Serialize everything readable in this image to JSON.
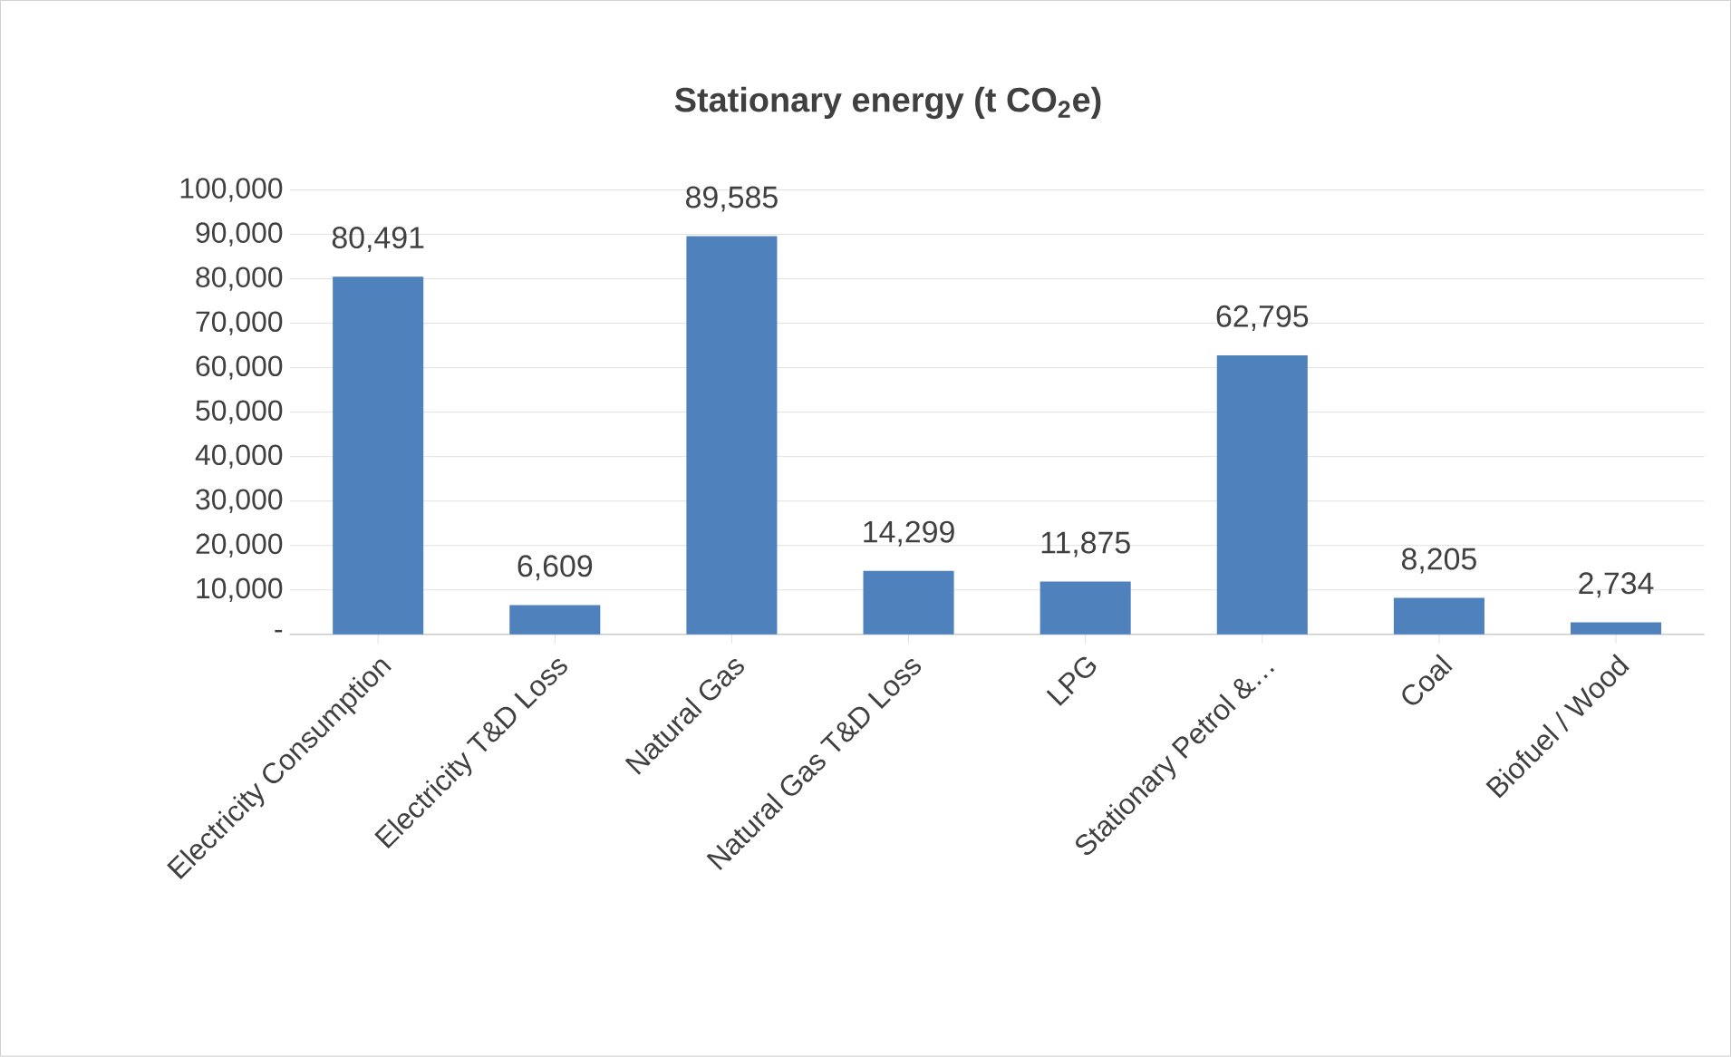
{
  "chart_data": {
    "type": "bar",
    "title": "Stationary energy (t CO$_{2}$e)",
    "categories": [
      "Electricity Consumption",
      "Electricity T&D Loss",
      "Natural Gas",
      "Natural Gas T&D Loss",
      "LPG",
      "Stationary Petrol &…",
      "Coal",
      "Biofuel / Wood"
    ],
    "values": [
      80491,
      6609,
      89585,
      14299,
      11875,
      62795,
      8205,
      2734
    ],
    "value_labels": [
      "80,491",
      "6,609",
      "89,585",
      "14,299",
      "11,875",
      "62,795",
      "8,205",
      "2,734"
    ],
    "color": "#4f81bd",
    "ylim": [
      0,
      100000
    ],
    "yticks": [
      {
        "value": 0,
        "label": "-"
      },
      {
        "value": 10000,
        "label": "10,000"
      },
      {
        "value": 20000,
        "label": "20,000"
      },
      {
        "value": 30000,
        "label": "30,000"
      },
      {
        "value": 40000,
        "label": "40,000"
      },
      {
        "value": 50000,
        "label": "50,000"
      },
      {
        "value": 60000,
        "label": "60,000"
      },
      {
        "value": 70000,
        "label": "70,000"
      },
      {
        "value": 80000,
        "label": "80,000"
      },
      {
        "value": 90000,
        "label": "90,000"
      },
      {
        "value": 100000,
        "label": "100,000"
      }
    ],
    "grid": "y"
  }
}
